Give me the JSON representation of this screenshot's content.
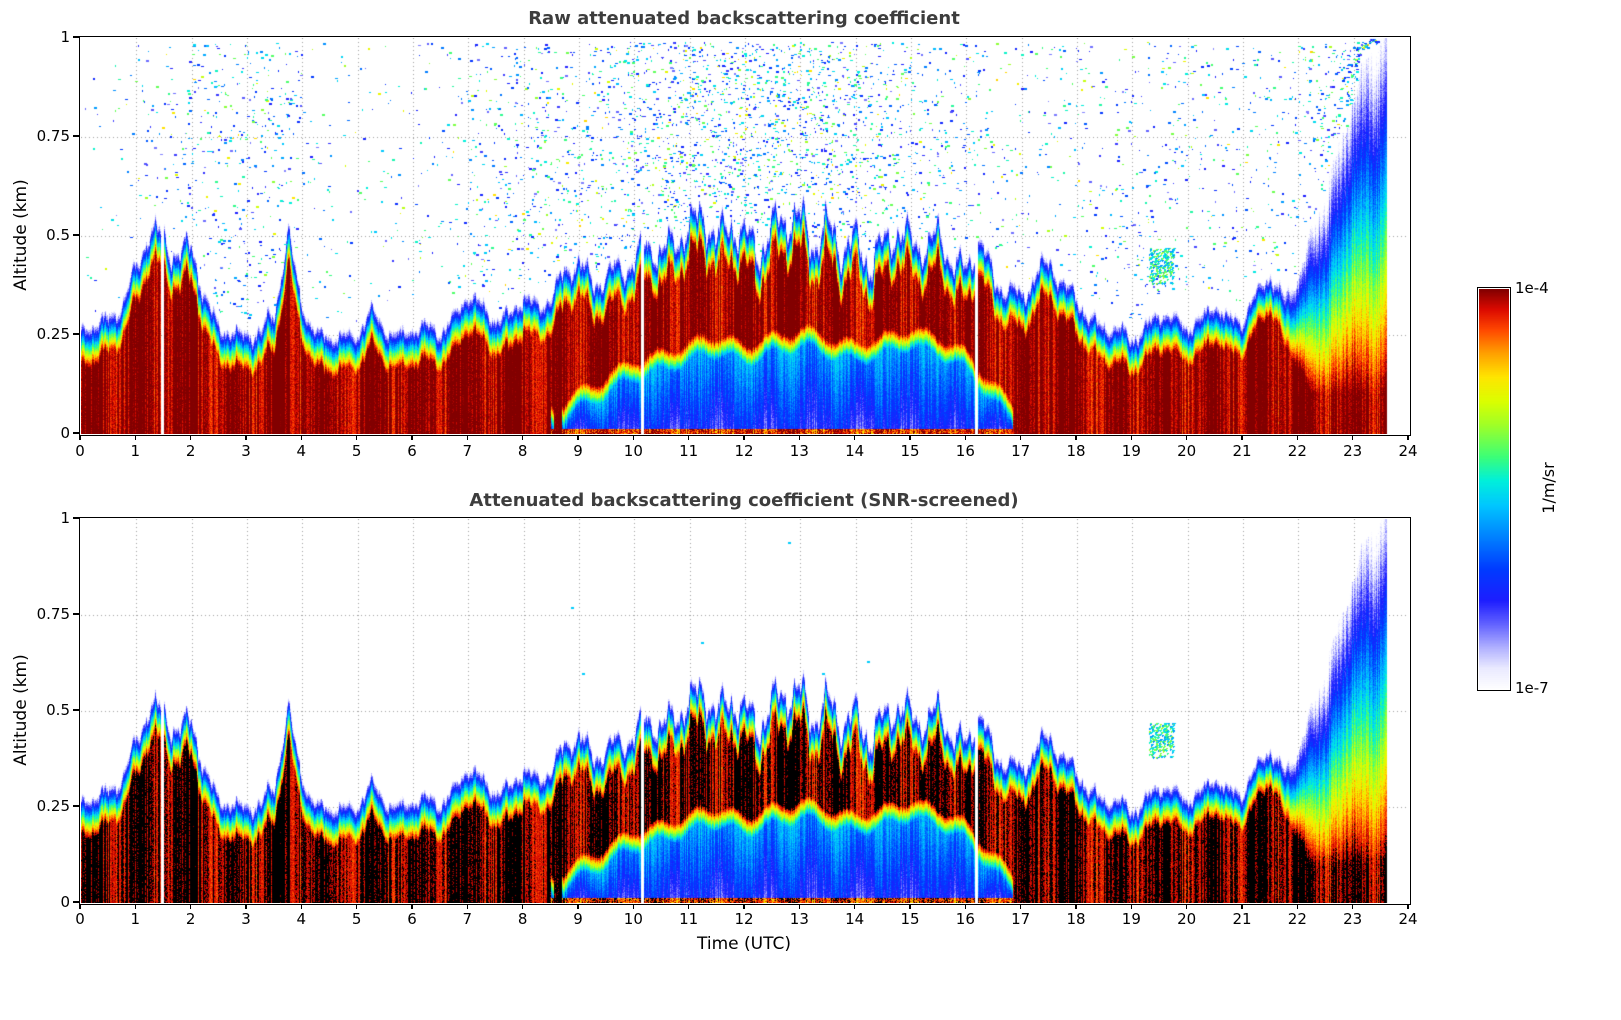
{
  "figure": {
    "background": "#ffffff"
  },
  "chart_data": {
    "type": "heatmap",
    "panels": [
      {
        "title": "Raw attenuated backscattering coefficient",
        "noise_speckles": true,
        "saturation_black": false
      },
      {
        "title": "Attenuated backscattering coefficient (SNR-screened)",
        "noise_speckles": false,
        "saturation_black": true
      }
    ],
    "x_axis": {
      "label": "Time (UTC)",
      "min": 0,
      "max": 24,
      "data_end_h": 23.6,
      "ticks": [
        0,
        1,
        2,
        3,
        4,
        5,
        6,
        7,
        8,
        9,
        10,
        11,
        12,
        13,
        14,
        15,
        16,
        17,
        18,
        19,
        20,
        21,
        22,
        23,
        24
      ]
    },
    "y_axis": {
      "label": "Altitude (km)",
      "min": 0,
      "max": 1,
      "ticks": [
        0,
        0.25,
        0.5,
        0.75,
        1
      ],
      "tick_labels": [
        "0",
        "0.25",
        "0.5",
        "0.75",
        "1"
      ]
    },
    "colorbar": {
      "max_label": "1e-4",
      "min_label": "1e-7",
      "units": "1/m/sr",
      "log10_min": -7,
      "log10_max": -4,
      "colormap_stops": [
        [
          0.0,
          255,
          255,
          255
        ],
        [
          0.05,
          235,
          235,
          255
        ],
        [
          0.1,
          180,
          180,
          255
        ],
        [
          0.16,
          100,
          100,
          255
        ],
        [
          0.22,
          30,
          30,
          255
        ],
        [
          0.3,
          0,
          60,
          255
        ],
        [
          0.38,
          0,
          130,
          255
        ],
        [
          0.46,
          0,
          200,
          255
        ],
        [
          0.52,
          0,
          240,
          220
        ],
        [
          0.58,
          60,
          255,
          120
        ],
        [
          0.66,
          160,
          255,
          40
        ],
        [
          0.72,
          220,
          255,
          0
        ],
        [
          0.78,
          255,
          230,
          0
        ],
        [
          0.84,
          255,
          160,
          0
        ],
        [
          0.9,
          255,
          70,
          0
        ],
        [
          0.95,
          220,
          10,
          0
        ],
        [
          1.0,
          130,
          0,
          0
        ]
      ]
    },
    "aerosol_layer_top_km": {
      "t_start_h": 0,
      "t_step_h": 0.25,
      "values": [
        0.27,
        0.28,
        0.3,
        0.34,
        0.42,
        0.53,
        0.5,
        0.46,
        0.48,
        0.35,
        0.28,
        0.26,
        0.26,
        0.27,
        0.31,
        0.52,
        0.33,
        0.26,
        0.25,
        0.26,
        0.26,
        0.32,
        0.27,
        0.26,
        0.27,
        0.28,
        0.27,
        0.3,
        0.36,
        0.33,
        0.3,
        0.3,
        0.36,
        0.33,
        0.36,
        0.41,
        0.46,
        0.38,
        0.41,
        0.43,
        0.45,
        0.49,
        0.46,
        0.51,
        0.53,
        0.57,
        0.5,
        0.55,
        0.5,
        0.48,
        0.53,
        0.56,
        0.55,
        0.5,
        0.53,
        0.48,
        0.5,
        0.45,
        0.48,
        0.53,
        0.5,
        0.48,
        0.51,
        0.45,
        0.42,
        0.5,
        0.4,
        0.38,
        0.35,
        0.41,
        0.45,
        0.38,
        0.35,
        0.3,
        0.28,
        0.27,
        0.25,
        0.28,
        0.31,
        0.3,
        0.28,
        0.3,
        0.33,
        0.3,
        0.3,
        0.36,
        0.41,
        0.35,
        0.4,
        0.5,
        0.62,
        0.72,
        0.85,
        0.95,
        1.0,
        1.0
      ]
    },
    "attenuated_zone_top_km": {
      "t_start_h": 0,
      "t_step_h": 0.25,
      "values": [
        0,
        0,
        0,
        0,
        0,
        0,
        0,
        0,
        0,
        0,
        0,
        0,
        0,
        0,
        0,
        0,
        0,
        0,
        0,
        0,
        0,
        0,
        0,
        0,
        0,
        0,
        0,
        0,
        0,
        0,
        0,
        0,
        0,
        0,
        0.02,
        0.04,
        0.06,
        0.08,
        0.1,
        0.12,
        0.14,
        0.15,
        0.16,
        0.17,
        0.18,
        0.2,
        0.2,
        0.19,
        0.18,
        0.19,
        0.2,
        0.21,
        0.22,
        0.21,
        0.2,
        0.19,
        0.18,
        0.19,
        0.2,
        0.21,
        0.22,
        0.21,
        0.2,
        0.18,
        0.16,
        0.12,
        0.08,
        0.04,
        0,
        0,
        0,
        0,
        0,
        0,
        0,
        0,
        0,
        0,
        0,
        0,
        0,
        0,
        0,
        0,
        0,
        0,
        0,
        0,
        0,
        0,
        0,
        0,
        0,
        0,
        0,
        0
      ]
    },
    "data_gaps_h": [
      1.48,
      10.15,
      16.18
    ],
    "cloud_patches": [
      {
        "t0": 19.3,
        "t1": 19.75,
        "z0": 0.38,
        "z1": 0.47
      }
    ],
    "residual_speckles": [
      [
        8.85,
        0.77
      ],
      [
        9.05,
        0.6
      ],
      [
        12.78,
        0.94
      ],
      [
        14.2,
        0.63
      ],
      [
        11.2,
        0.68
      ],
      [
        13.4,
        0.6
      ]
    ],
    "edge_width_km": 0.1,
    "noise": {
      "seed": 42,
      "speckle_attempts": 9000
    }
  }
}
